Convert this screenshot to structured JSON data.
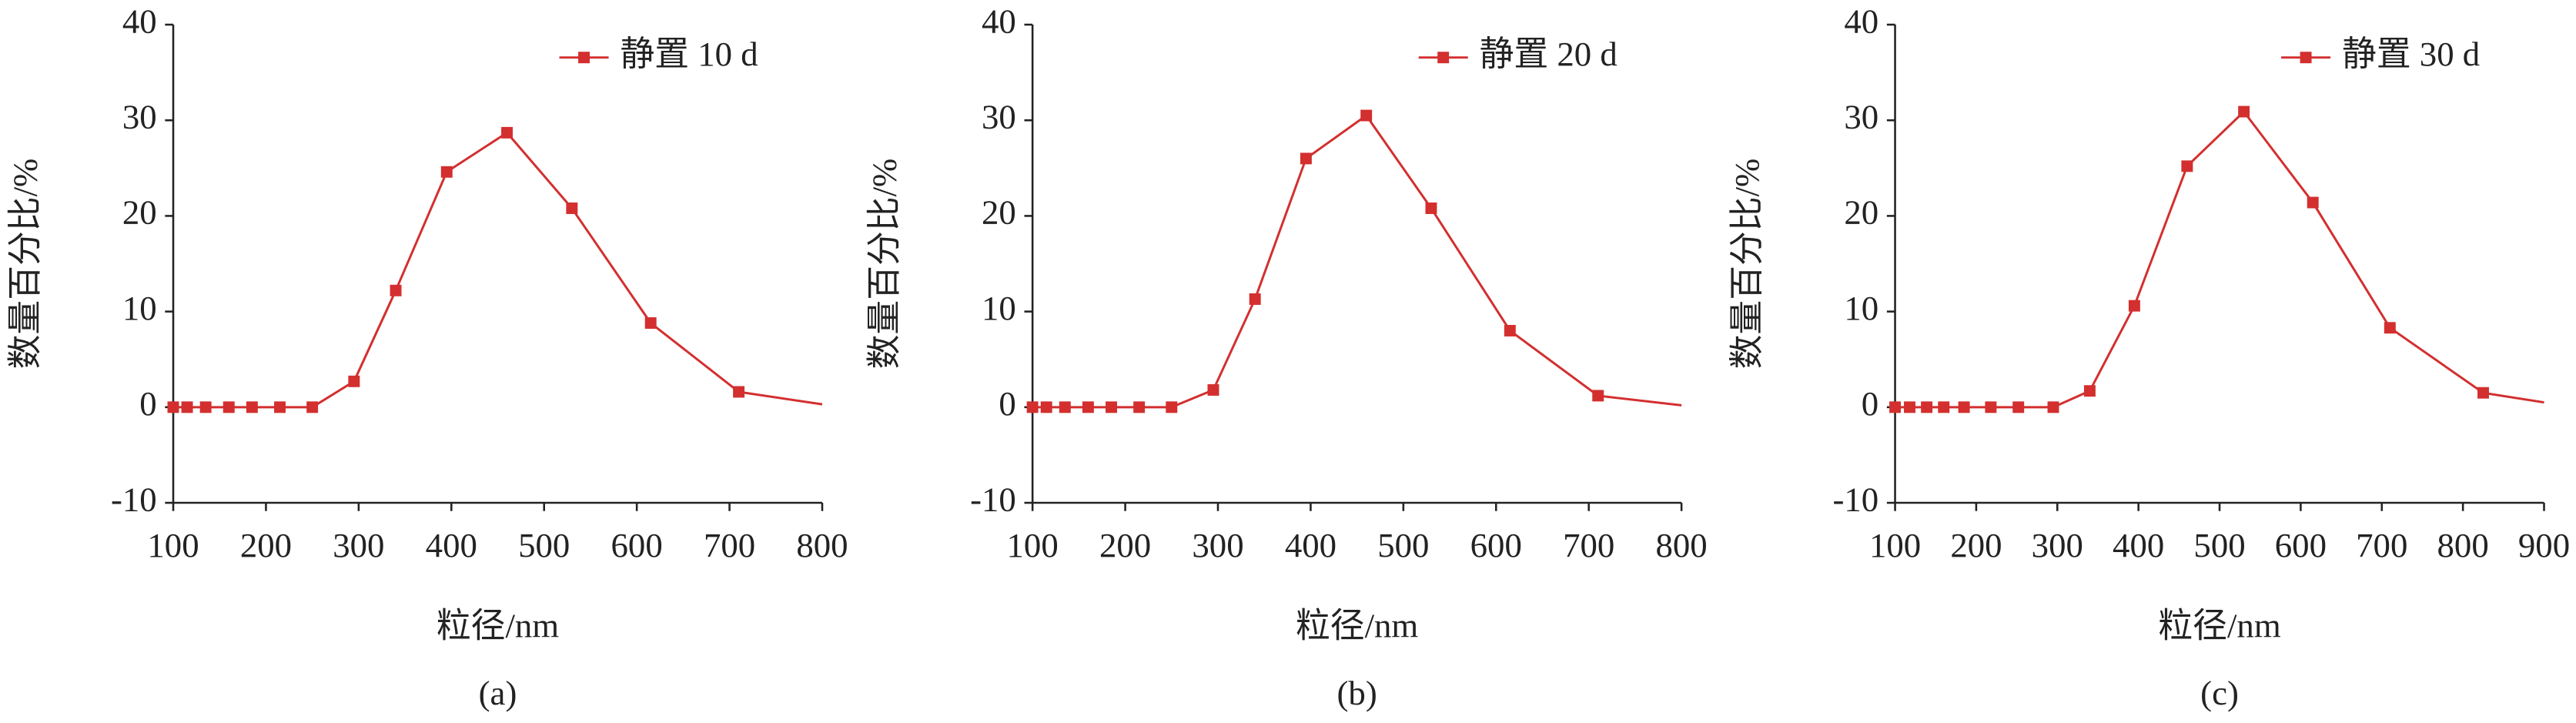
{
  "chart_data": [
    {
      "type": "line",
      "caption": "(a)",
      "xlabel": "粒径/nm",
      "ylabel": "数量百分比/%",
      "x": [
        100,
        115,
        135,
        160,
        185,
        215,
        250,
        295,
        340,
        395,
        460,
        530,
        615,
        710,
        800
      ],
      "series": [
        {
          "name": "静置 10 d",
          "color": "#d32f2f",
          "values": [
            0,
            0,
            0,
            0,
            0,
            0,
            0,
            2.7,
            12.2,
            24.6,
            28.7,
            20.8,
            8.8,
            1.6,
            0.3
          ]
        }
      ],
      "xlim": [
        100,
        800
      ],
      "ylim": [
        -10,
        40
      ],
      "xticks": [
        100,
        200,
        300,
        400,
        500,
        600,
        700,
        800
      ],
      "yticks": [
        -10,
        0,
        10,
        20,
        30,
        40
      ]
    },
    {
      "type": "line",
      "caption": "(b)",
      "xlabel": "粒径/nm",
      "ylabel": "数量百分比/%",
      "x": [
        100,
        115,
        135,
        160,
        185,
        215,
        250,
        295,
        340,
        395,
        460,
        530,
        615,
        710,
        800
      ],
      "series": [
        {
          "name": "静置 20 d",
          "color": "#d32f2f",
          "values": [
            0,
            0,
            0,
            0,
            0,
            0,
            0,
            1.8,
            11.3,
            26,
            30.5,
            20.8,
            8,
            1.2,
            0.2
          ]
        }
      ],
      "xlim": [
        100,
        800
      ],
      "ylim": [
        -10,
        40
      ],
      "xticks": [
        100,
        200,
        300,
        400,
        500,
        600,
        700,
        800
      ],
      "yticks": [
        -10,
        0,
        10,
        20,
        30,
        40
      ]
    },
    {
      "type": "line",
      "caption": "(c)",
      "xlabel": "粒径/nm",
      "ylabel": "数量百分比/%",
      "x": [
        100,
        118,
        139,
        160,
        185,
        218,
        252,
        295,
        340,
        395,
        460,
        530,
        615,
        710,
        825,
        900
      ],
      "series": [
        {
          "name": "静置 30 d",
          "color": "#d32f2f",
          "values": [
            0,
            0,
            0,
            0,
            0,
            0,
            0,
            0,
            1.7,
            10.6,
            25.2,
            30.9,
            21.4,
            8.3,
            1.5,
            0.5
          ]
        }
      ],
      "xlim": [
        100,
        900
      ],
      "ylim": [
        -10,
        40
      ],
      "xticks": [
        100,
        200,
        300,
        400,
        500,
        600,
        700,
        800,
        900
      ],
      "yticks": [
        -10,
        0,
        10,
        20,
        30,
        40
      ]
    }
  ]
}
